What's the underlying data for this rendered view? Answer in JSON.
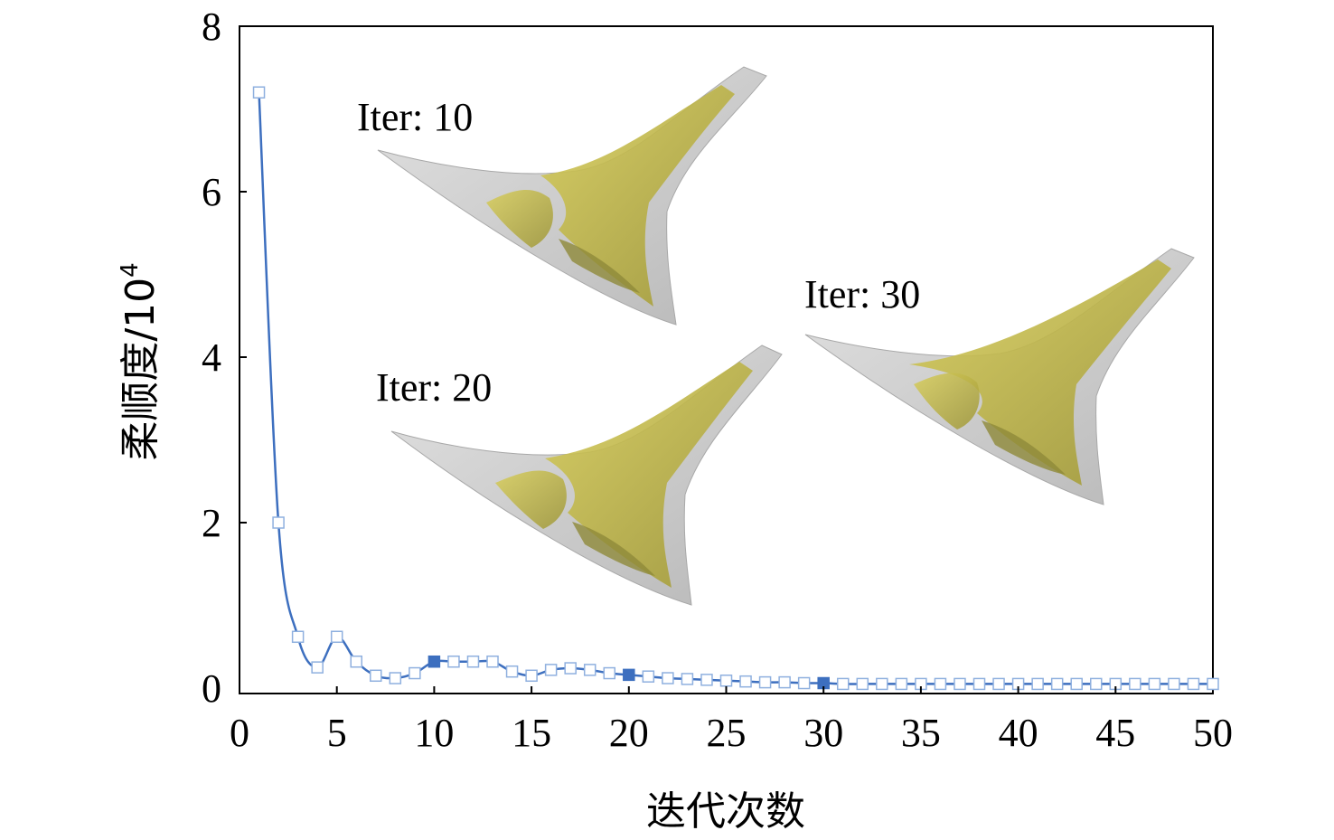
{
  "chart_data": {
    "type": "line",
    "xlabel": "迭代次数",
    "ylabel": "柔顺度/10",
    "ylabel_exponent": "4",
    "xlim": [
      0,
      50
    ],
    "ylim": [
      0,
      8
    ],
    "xticks": [
      "0",
      "5",
      "10",
      "15",
      "20",
      "25",
      "30",
      "35",
      "40",
      "45",
      "50"
    ],
    "yticks": [
      "0",
      "2",
      "4",
      "6",
      "8"
    ],
    "grid": false,
    "series": [
      {
        "x": [
          1,
          2,
          3,
          4,
          5,
          6,
          7,
          8,
          9,
          10,
          11,
          12,
          13,
          14,
          15,
          16,
          17,
          18,
          19,
          20,
          21,
          22,
          23,
          24,
          25,
          26,
          27,
          28,
          29,
          30,
          31,
          32,
          33,
          34,
          35,
          36,
          37,
          38,
          39,
          40,
          41,
          42,
          43,
          44,
          45,
          46,
          47,
          48,
          49,
          50
        ],
        "values": [
          7.2,
          2.0,
          0.62,
          0.25,
          0.62,
          0.32,
          0.15,
          0.12,
          0.18,
          0.32,
          0.32,
          0.32,
          0.32,
          0.2,
          0.15,
          0.22,
          0.24,
          0.22,
          0.18,
          0.16,
          0.14,
          0.12,
          0.11,
          0.1,
          0.09,
          0.08,
          0.07,
          0.07,
          0.06,
          0.06,
          0.05,
          0.05,
          0.05,
          0.05,
          0.05,
          0.05,
          0.05,
          0.05,
          0.05,
          0.05,
          0.05,
          0.05,
          0.05,
          0.05,
          0.05,
          0.05,
          0.05,
          0.05,
          0.05,
          0.05
        ],
        "highlighted_x": [
          10,
          20,
          30
        ],
        "color": "#3d6fbf"
      }
    ],
    "annotations": [
      {
        "text": "Iter: 10",
        "iteration": 10
      },
      {
        "text": "Iter: 20",
        "iteration": 20
      },
      {
        "text": "Iter: 30",
        "iteration": 30
      }
    ],
    "colors": {
      "line": "#3d6fbf",
      "marker_open": "#8fb0df",
      "marker_filled": "#3d6fbf",
      "shape_gray": "#c9c9c9",
      "material_yellow": "#c9c04a"
    }
  }
}
